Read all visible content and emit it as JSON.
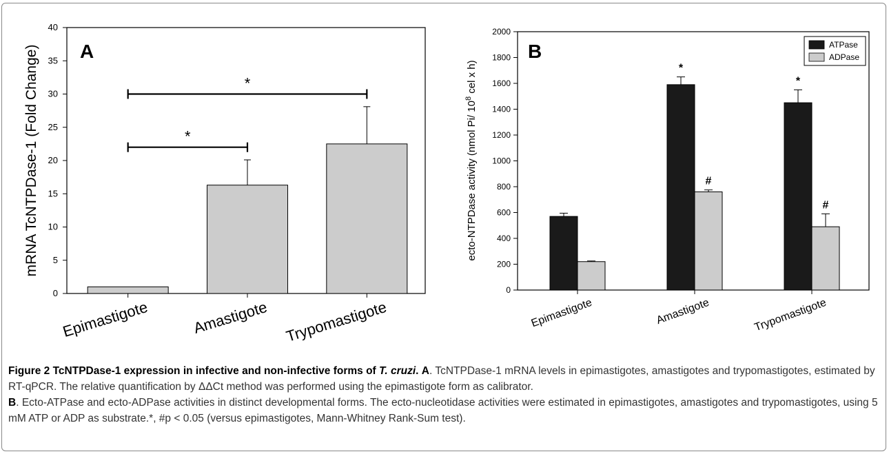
{
  "chart_data": [
    {
      "type": "bar",
      "panel_label": "A",
      "ylabel": "mRNA TcNTPDase-1 (Fold Change)",
      "ylim": [
        0,
        40
      ],
      "yticks": [
        0,
        5,
        10,
        15,
        20,
        25,
        30,
        35,
        40
      ],
      "categories": [
        "Epimastigote",
        "Amastigote",
        "Trypomastigote"
      ],
      "values": [
        1,
        16.3,
        22.5
      ],
      "errors": [
        0,
        3.8,
        5.6
      ],
      "bar_color": "#cccccc",
      "significance": [
        {
          "from": 0,
          "to": 1,
          "y": 22,
          "label": "*"
        },
        {
          "from": 0,
          "to": 2,
          "y": 30,
          "label": "*"
        }
      ]
    },
    {
      "type": "bar",
      "panel_label": "B",
      "ylabel": "ecto-NTPDase activity (nmol Pi/ 10",
      "ylabel_sup": "8",
      "ylabel_tail": " cel x h)",
      "ylim": [
        0,
        2000
      ],
      "yticks": [
        0,
        200,
        400,
        600,
        800,
        1000,
        1200,
        1400,
        1600,
        1800,
        2000
      ],
      "categories": [
        "Epimastigote",
        "Amastigote",
        "Trypomastigote"
      ],
      "series": [
        {
          "name": "ATPase",
          "color": "#1a1a1a",
          "values": [
            570,
            1590,
            1450
          ],
          "errors": [
            25,
            60,
            100
          ],
          "marks": [
            "",
            "*",
            "*"
          ]
        },
        {
          "name": "ADPase",
          "color": "#cccccc",
          "values": [
            220,
            760,
            490
          ],
          "errors": [
            5,
            15,
            100
          ],
          "marks": [
            "",
            "#",
            "#"
          ]
        }
      ],
      "legend_position": "top-right"
    }
  ],
  "caption": {
    "title": "Figure 2 TcNTPDase-1 expression in infective and non-infective forms of",
    "title_italic": "T. cruzi",
    "title_end": ".",
    "a_label": "A",
    "a_text": ". TcNTPDase-1 mRNA levels in epimastigotes, amastigotes and trypomastigotes, estimated by RT-qPCR. The relative quantification by ΔΔCt method was performed using the epimastigote form as calibrator.",
    "b_label": "B",
    "b_text": ". Ecto-ATPase and ecto-ADPase activities in distinct developmental forms. The ecto-nucleotidase activities were estimated in epimastigotes, amastigotes and trypomastigotes, using 5 mM ATP or ADP as substrate.*, #p < 0.05 (versus epimastigotes, Mann-Whitney Rank-Sum test)."
  }
}
